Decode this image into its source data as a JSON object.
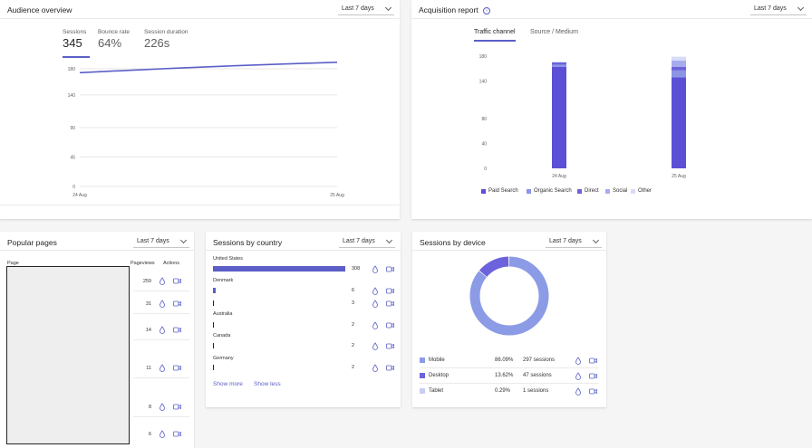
{
  "audience": {
    "title": "Audience overview",
    "range": "Last 7 days",
    "metrics": [
      {
        "label": "Sessions",
        "value": "345"
      },
      {
        "label": "Bounce rate",
        "value": "64%"
      },
      {
        "label": "Session duration",
        "value": "226s"
      }
    ]
  },
  "acquisition": {
    "title": "Acquisition report",
    "range": "Last 7 days",
    "tabs": [
      "Traffic channel",
      "Source / Medium"
    ]
  },
  "popular": {
    "title": "Popular pages",
    "range": "Last 7 days",
    "col_page": "Page",
    "col_views": "Pageviews",
    "col_actions": "Actions",
    "views": [
      "259",
      "31",
      "14",
      "11",
      "8",
      "6"
    ]
  },
  "country": {
    "title": "Sessions by country",
    "range": "Last 7 days",
    "rows": [
      {
        "name": "United States",
        "value": "308",
        "share": 1.0
      },
      {
        "name": "Denmark",
        "value": "6",
        "share": 0.0195
      },
      {
        "name": "",
        "value": "3",
        "share": 0.0097
      },
      {
        "name": "Australia",
        "value": "2",
        "share": 0.0065
      },
      {
        "name": "Canada",
        "value": "2",
        "share": 0.0065
      },
      {
        "name": "Germany",
        "value": "2",
        "share": 0.0065
      }
    ],
    "show_more": "Show more",
    "show_less": "Show less"
  },
  "device": {
    "title": "Sessions by device",
    "range": "Last 7 days",
    "rows": [
      {
        "name": "Mobile",
        "pct": "86.09%",
        "sessions": "297 sessions",
        "color": "#8b9be6"
      },
      {
        "name": "Desktop",
        "pct": "13.62%",
        "sessions": "47 sessions",
        "color": "#6c63dc"
      },
      {
        "name": "Tablet",
        "pct": "0.29%",
        "sessions": "1 sessions",
        "color": "#c9cdf2"
      }
    ]
  },
  "chart_data": [
    {
      "type": "line",
      "x": [
        "24 Aug",
        "25 Aug"
      ],
      "series": [
        {
          "values": [
            174,
            190
          ]
        }
      ],
      "yticks": [
        "0",
        "45",
        "90",
        "140",
        "180"
      ],
      "ylim": [
        0,
        180
      ],
      "grid": true
    },
    {
      "type": "bar",
      "stacked": true,
      "categories": [
        "24 Aug",
        "25 Aug"
      ],
      "series": [
        {
          "name": "Paid Search",
          "values": [
            163,
            146
          ]
        },
        {
          "name": "Organic Search",
          "values": [
            3,
            11
          ]
        },
        {
          "name": "Direct",
          "values": [
            4,
            6
          ]
        },
        {
          "name": "Social",
          "values": [
            0,
            10
          ]
        },
        {
          "name": "Other",
          "values": [
            1,
            6
          ]
        }
      ],
      "colors": [
        "#5b4fd6",
        "#8b95e6",
        "#6c63dc",
        "#a6acee",
        "#d9dcf7"
      ],
      "yticks": [
        "0",
        "40",
        "80",
        "140",
        "180"
      ],
      "ylim": [
        0,
        180
      ],
      "legend": "bottom"
    },
    {
      "type": "pie",
      "donut": true,
      "labels": [
        "Mobile",
        "Desktop",
        "Tablet"
      ],
      "values": [
        86.09,
        13.62,
        0.29
      ]
    }
  ]
}
